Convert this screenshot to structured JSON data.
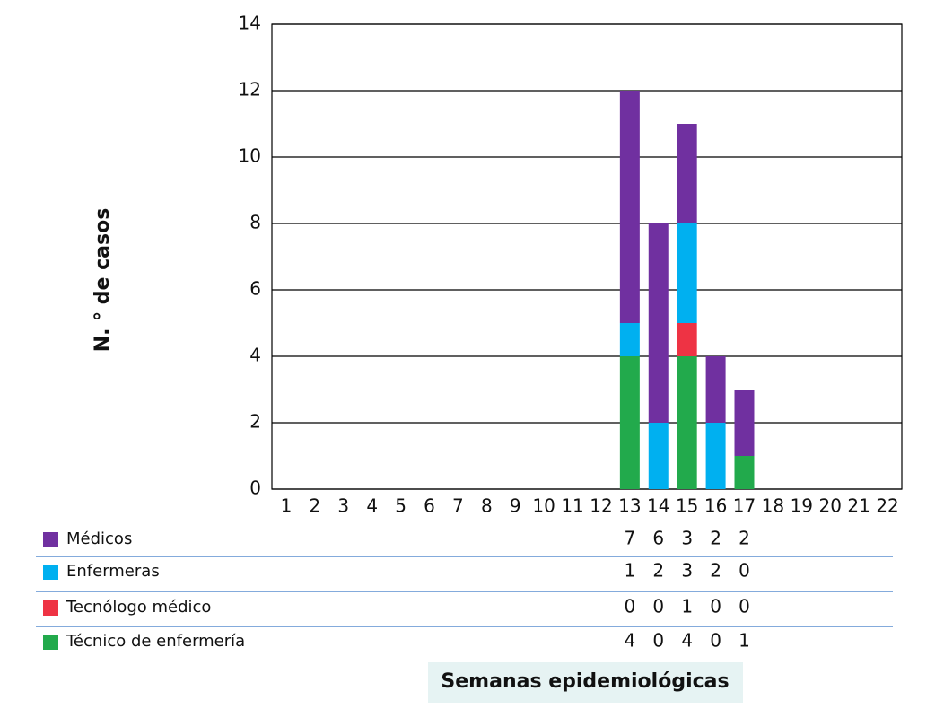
{
  "chart_data": {
    "type": "stacked_bar",
    "ylabel": "N. ° de casos",
    "xlabel": "Semanas epidemiológicas",
    "categories": [
      "1",
      "2",
      "3",
      "4",
      "5",
      "6",
      "7",
      "8",
      "9",
      "10",
      "11",
      "12",
      "13",
      "14",
      "15",
      "16",
      "17",
      "18",
      "19",
      "20",
      "21",
      "22"
    ],
    "series": [
      {
        "name": "Médicos",
        "color": "#7030a0",
        "values": [
          null,
          null,
          null,
          null,
          null,
          null,
          null,
          null,
          null,
          null,
          null,
          null,
          7,
          6,
          3,
          2,
          2,
          null,
          null,
          null,
          null,
          null
        ]
      },
      {
        "name": "Enfermeras",
        "color": "#00b0f0",
        "values": [
          null,
          null,
          null,
          null,
          null,
          null,
          null,
          null,
          null,
          null,
          null,
          null,
          1,
          2,
          3,
          2,
          0,
          null,
          null,
          null,
          null,
          null
        ]
      },
      {
        "name": "Tecnólogo médico",
        "color": "#ee3344",
        "values": [
          null,
          null,
          null,
          null,
          null,
          null,
          null,
          null,
          null,
          null,
          null,
          null,
          0,
          0,
          1,
          0,
          0,
          null,
          null,
          null,
          null,
          null
        ]
      },
      {
        "name": "Técnico de enfermería",
        "color": "#22aa4c",
        "values": [
          null,
          null,
          null,
          null,
          null,
          null,
          null,
          null,
          null,
          null,
          null,
          null,
          4,
          0,
          4,
          0,
          1,
          null,
          null,
          null,
          null,
          null
        ]
      }
    ],
    "ylim": [
      0,
      14
    ],
    "yticks": [
      0,
      2,
      4,
      6,
      8,
      10,
      12,
      14
    ],
    "grid": true
  }
}
